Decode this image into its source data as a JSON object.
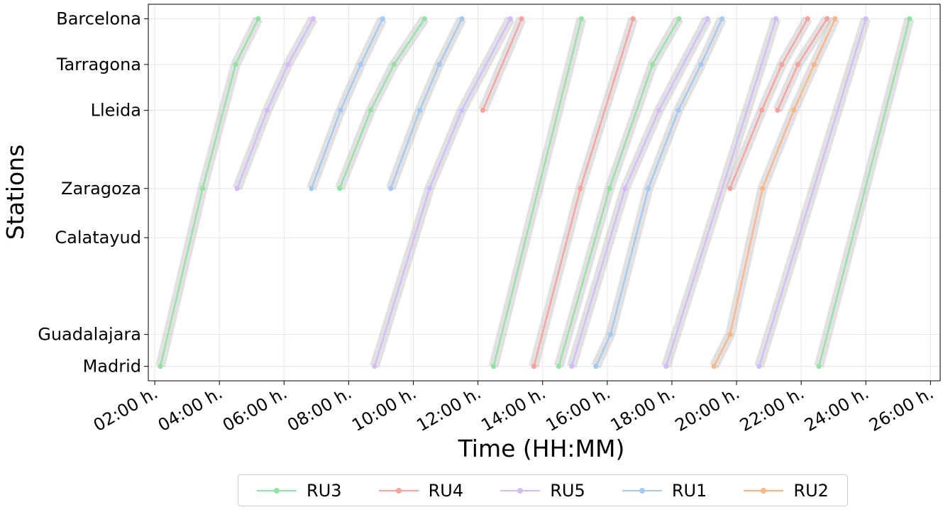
{
  "chart_data": {
    "type": "line",
    "title": "",
    "xlabel": "Time (HH:MM)",
    "ylabel": "Stations",
    "x_unit": "hours",
    "xlim": [
      1.8,
      26.3
    ],
    "x_ticks": [
      {
        "value": 2,
        "label": "02:00 h."
      },
      {
        "value": 4,
        "label": "04:00 h."
      },
      {
        "value": 6,
        "label": "06:00 h."
      },
      {
        "value": 8,
        "label": "08:00 h."
      },
      {
        "value": 10,
        "label": "10:00 h."
      },
      {
        "value": 12,
        "label": "12:00 h."
      },
      {
        "value": 14,
        "label": "14:00 h."
      },
      {
        "value": 16,
        "label": "16:00 h."
      },
      {
        "value": 18,
        "label": "18:00 h."
      },
      {
        "value": 20,
        "label": "20:00 h."
      },
      {
        "value": 22,
        "label": "22:00 h."
      },
      {
        "value": 24,
        "label": "24:00 h."
      },
      {
        "value": 26,
        "label": "26:00 h."
      }
    ],
    "stations": [
      {
        "name": "Madrid",
        "km": 0
      },
      {
        "name": "Guadalajara",
        "km": 55
      },
      {
        "name": "Calatayud",
        "km": 222
      },
      {
        "name": "Zaragoza",
        "km": 307
      },
      {
        "name": "Lleida",
        "km": 442
      },
      {
        "name": "Tarragona",
        "km": 521
      },
      {
        "name": "Barcelona",
        "km": 600
      }
    ],
    "ylim": [
      -25,
      625
    ],
    "grid": true,
    "legend_position": "bottom-center",
    "series": [
      {
        "name": "RU3",
        "color": "#8de5a1",
        "trains": [
          [
            [
              2.17,
              "Madrid"
            ],
            [
              3.48,
              "Zaragoza"
            ],
            [
              4.5,
              "Tarragona"
            ],
            [
              5.2,
              "Barcelona"
            ]
          ],
          [
            [
              7.72,
              "Zaragoza"
            ],
            [
              8.68,
              "Lleida"
            ],
            [
              9.4,
              "Tarragona"
            ],
            [
              10.35,
              "Barcelona"
            ]
          ],
          [
            [
              12.48,
              "Madrid"
            ],
            [
              15.2,
              "Barcelona"
            ]
          ],
          [
            [
              14.5,
              "Madrid"
            ],
            [
              16.07,
              "Zaragoza"
            ],
            [
              17.4,
              "Tarragona"
            ],
            [
              18.22,
              "Barcelona"
            ]
          ],
          [
            [
              22.55,
              "Madrid"
            ],
            [
              25.35,
              "Barcelona"
            ]
          ]
        ]
      },
      {
        "name": "RU4",
        "color": "#ff9f9b",
        "trains": [
          [
            [
              12.15,
              "Lleida"
            ],
            [
              13.35,
              "Barcelona"
            ]
          ],
          [
            [
              13.73,
              "Madrid"
            ],
            [
              15.17,
              "Zaragoza"
            ],
            [
              16.8,
              "Barcelona"
            ]
          ],
          [
            [
              19.8,
              "Zaragoza"
            ],
            [
              20.78,
              "Lleida"
            ],
            [
              21.4,
              "Tarragona"
            ],
            [
              22.2,
              "Barcelona"
            ]
          ],
          [
            [
              21.27,
              "Lleida"
            ],
            [
              21.9,
              "Tarragona"
            ],
            [
              22.8,
              "Barcelona"
            ]
          ]
        ]
      },
      {
        "name": "RU5",
        "color": "#d0bbff",
        "trains": [
          [
            [
              4.55,
              "Zaragoza"
            ],
            [
              5.48,
              "Lleida"
            ],
            [
              6.12,
              "Tarragona"
            ],
            [
              6.9,
              "Barcelona"
            ]
          ],
          [
            [
              8.8,
              "Madrid"
            ],
            [
              10.5,
              "Zaragoza"
            ],
            [
              11.5,
              "Lleida"
            ],
            [
              13.0,
              "Barcelona"
            ]
          ],
          [
            [
              14.9,
              "Madrid"
            ],
            [
              16.55,
              "Zaragoza"
            ],
            [
              17.6,
              "Lleida"
            ],
            [
              19.1,
              "Barcelona"
            ]
          ],
          [
            [
              17.82,
              "Madrid"
            ],
            [
              21.22,
              "Barcelona"
            ]
          ],
          [
            [
              20.7,
              "Madrid"
            ],
            [
              24.0,
              "Barcelona"
            ]
          ]
        ]
      },
      {
        "name": "RU1",
        "color": "#a1c9f4",
        "trains": [
          [
            [
              6.85,
              "Zaragoza"
            ],
            [
              7.75,
              "Lleida"
            ],
            [
              8.37,
              "Tarragona"
            ],
            [
              9.05,
              "Barcelona"
            ]
          ],
          [
            [
              9.3,
              "Zaragoza"
            ],
            [
              10.2,
              "Lleida"
            ],
            [
              10.8,
              "Tarragona"
            ],
            [
              11.5,
              "Barcelona"
            ]
          ],
          [
            [
              15.65,
              "Madrid"
            ],
            [
              16.1,
              "Guadalajara"
            ],
            [
              17.27,
              "Zaragoza"
            ],
            [
              18.2,
              "Lleida"
            ],
            [
              18.9,
              "Tarragona"
            ],
            [
              19.55,
              "Barcelona"
            ]
          ]
        ]
      },
      {
        "name": "RU2",
        "color": "#ffb482",
        "trains": [
          [
            [
              19.3,
              "Madrid"
            ],
            [
              19.8,
              "Guadalajara"
            ],
            [
              20.8,
              "Zaragoza"
            ],
            [
              21.77,
              "Lleida"
            ],
            [
              22.4,
              "Tarragona"
            ],
            [
              23.05,
              "Barcelona"
            ]
          ]
        ]
      }
    ]
  }
}
